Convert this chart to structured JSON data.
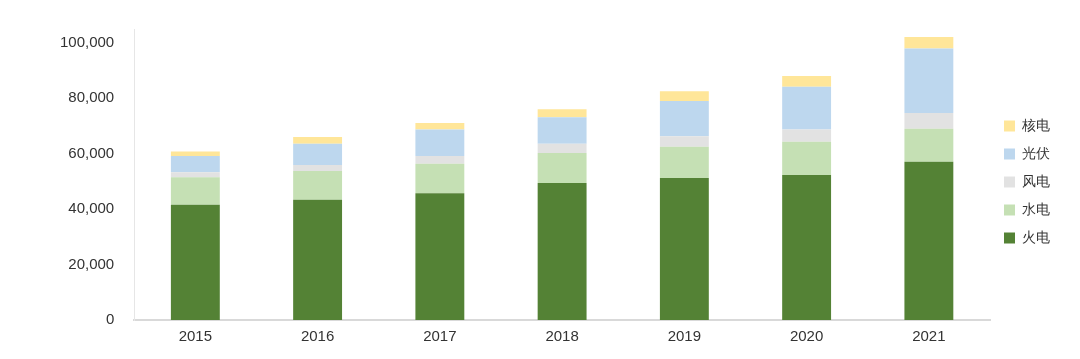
{
  "chart_data": {
    "type": "bar",
    "stacked": true,
    "categories": [
      "2015",
      "2016",
      "2017",
      "2018",
      "2019",
      "2020",
      "2021"
    ],
    "series": [
      {
        "name": "火电",
        "color": "#548235",
        "values": [
          41600,
          43400,
          45700,
          49400,
          51200,
          52300,
          57100
        ]
      },
      {
        "name": "水电",
        "color": "#c5e0b4",
        "values": [
          9900,
          10400,
          10700,
          10900,
          11300,
          12000,
          11900
        ]
      },
      {
        "name": "风电",
        "color": "#e2e2e2",
        "values": [
          1800,
          2100,
          2800,
          3300,
          3800,
          4400,
          5700
        ]
      },
      {
        "name": "光伏",
        "color": "#bdd7ee",
        "values": [
          5900,
          7700,
          9500,
          9600,
          12700,
          15500,
          23300
        ]
      },
      {
        "name": "核电",
        "color": "#ffe699",
        "values": [
          1600,
          2400,
          2400,
          2800,
          3500,
          3800,
          4100
        ]
      }
    ],
    "ylim": [
      0,
      105000
    ],
    "yticks": [
      {
        "value": 0,
        "label": "0"
      },
      {
        "value": 20000,
        "label": "20,000"
      },
      {
        "value": 40000,
        "label": "40,000"
      },
      {
        "value": 60000,
        "label": "60,000"
      },
      {
        "value": 80000,
        "label": "80,000"
      },
      {
        "value": 100000,
        "label": "100,000"
      }
    ],
    "grid": false,
    "legend": "right"
  }
}
